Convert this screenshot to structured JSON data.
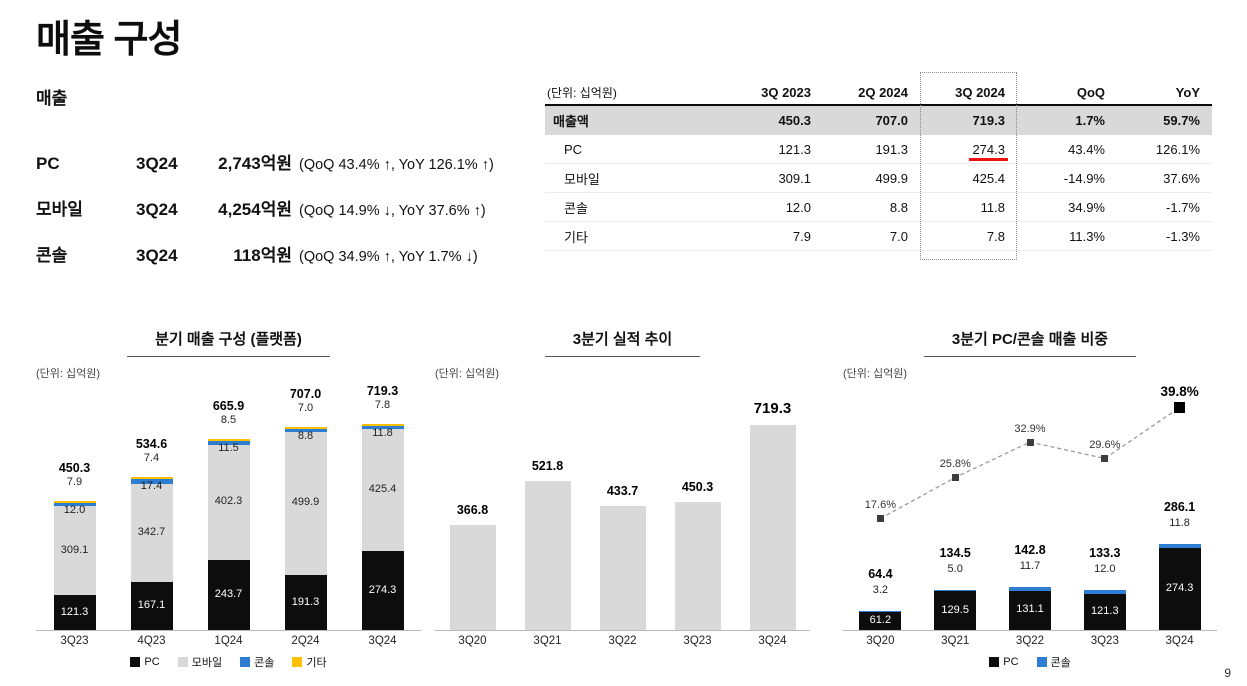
{
  "page": {
    "title": "매출 구성",
    "number": "9"
  },
  "summary": {
    "heading": "매출",
    "rows": [
      {
        "label": "PC",
        "quarter": "3Q24",
        "value": "2,743억원",
        "detail": "(QoQ 43.4% ↑, YoY 126.1% ↑)"
      },
      {
        "label": "모바일",
        "quarter": "3Q24",
        "value": "4,254억원",
        "detail": "(QoQ 14.9% ↓, YoY 37.6% ↑)"
      },
      {
        "label": "콘솔",
        "quarter": "3Q24",
        "value": "118억원",
        "detail": "(QoQ 34.9% ↑, YoY 1.7% ↓)"
      }
    ]
  },
  "table": {
    "unit_label": "(단위: 십억원)",
    "columns": [
      "3Q 2023",
      "2Q 2024",
      "3Q 2024",
      "QoQ",
      "YoY"
    ],
    "highlight_column": "3Q 2024",
    "rows": [
      {
        "label": "매출액",
        "values": [
          "450.3",
          "707.0",
          "719.3",
          "1.7%",
          "59.7%"
        ],
        "emphasis": true
      },
      {
        "label": "PC",
        "values": [
          "121.3",
          "191.3",
          "274.3",
          "43.4%",
          "126.1%"
        ],
        "underline_value": "274.3"
      },
      {
        "label": "모바일",
        "values": [
          "309.1",
          "499.9",
          "425.4",
          "-14.9%",
          "37.6%"
        ]
      },
      {
        "label": "콘솔",
        "values": [
          "12.0",
          "8.8",
          "11.8",
          "34.9%",
          "-1.7%"
        ]
      },
      {
        "label": "기타",
        "values": [
          "7.9",
          "7.0",
          "7.8",
          "11.3%",
          "-1.3%"
        ]
      }
    ]
  },
  "chart_data": [
    {
      "type": "bar",
      "stacked": true,
      "title": "분기 매출 구성 (플랫폼)",
      "unit_label": "(단위: 십억원)",
      "categories": [
        "3Q23",
        "4Q23",
        "1Q24",
        "2Q24",
        "3Q24"
      ],
      "series": [
        {
          "key": "pc",
          "name": "PC",
          "color": "#0d0d0d",
          "values": [
            121.3,
            167.1,
            243.7,
            191.3,
            274.3
          ]
        },
        {
          "key": "mobile",
          "name": "모바일",
          "color": "#d9d9d9",
          "values": [
            309.1,
            342.7,
            402.3,
            499.9,
            425.4
          ]
        },
        {
          "key": "console",
          "name": "콘솔",
          "color": "#2d7dd2",
          "values": [
            12.0,
            17.4,
            11.5,
            8.8,
            11.8
          ]
        },
        {
          "key": "etc",
          "name": "기타",
          "color": "#ffc000",
          "values": [
            7.9,
            7.4,
            8.5,
            7.0,
            7.8
          ]
        }
      ],
      "totals": [
        450.3,
        534.6,
        665.9,
        707.0,
        719.3
      ],
      "legend": [
        "PC",
        "모바일",
        "콘솔",
        "기타"
      ],
      "ylim": [
        0,
        760
      ],
      "grid": false,
      "legend_position": "bottom"
    },
    {
      "type": "bar",
      "stacked": false,
      "title": "3분기 실적 추이",
      "unit_label": "(단위: 십억원)",
      "categories": [
        "3Q20",
        "3Q21",
        "3Q22",
        "3Q23",
        "3Q24"
      ],
      "values": [
        366.8,
        521.8,
        433.7,
        450.3,
        719.3
      ],
      "bar_color": "#d9d9d9",
      "ylim": [
        0,
        760
      ],
      "grid": false
    },
    {
      "type": "bar+line",
      "stacked": true,
      "title": "3분기 PC/콘솔 매출 비중",
      "unit_label": "(단위: 십억원)",
      "categories": [
        "3Q20",
        "3Q21",
        "3Q22",
        "3Q23",
        "3Q24"
      ],
      "series": [
        {
          "key": "pc",
          "name": "PC",
          "color": "#0d0d0d",
          "values": [
            61.2,
            129.5,
            131.1,
            121.3,
            274.3
          ]
        },
        {
          "key": "console",
          "name": "콘솔",
          "color": "#2d7dd2",
          "values": [
            3.2,
            5.0,
            11.7,
            12.0,
            11.8
          ]
        }
      ],
      "totals": [
        64.4,
        134.5,
        142.8,
        133.3,
        286.1
      ],
      "line": {
        "name": "PC/콘솔 비중",
        "values_pct": [
          17.6,
          25.8,
          32.9,
          29.6,
          39.8
        ],
        "style": "dashed",
        "marker": "square"
      },
      "legend": [
        "PC",
        "콘솔"
      ],
      "ylim": [
        0,
        760
      ],
      "grid": false,
      "legend_position": "bottom"
    }
  ]
}
